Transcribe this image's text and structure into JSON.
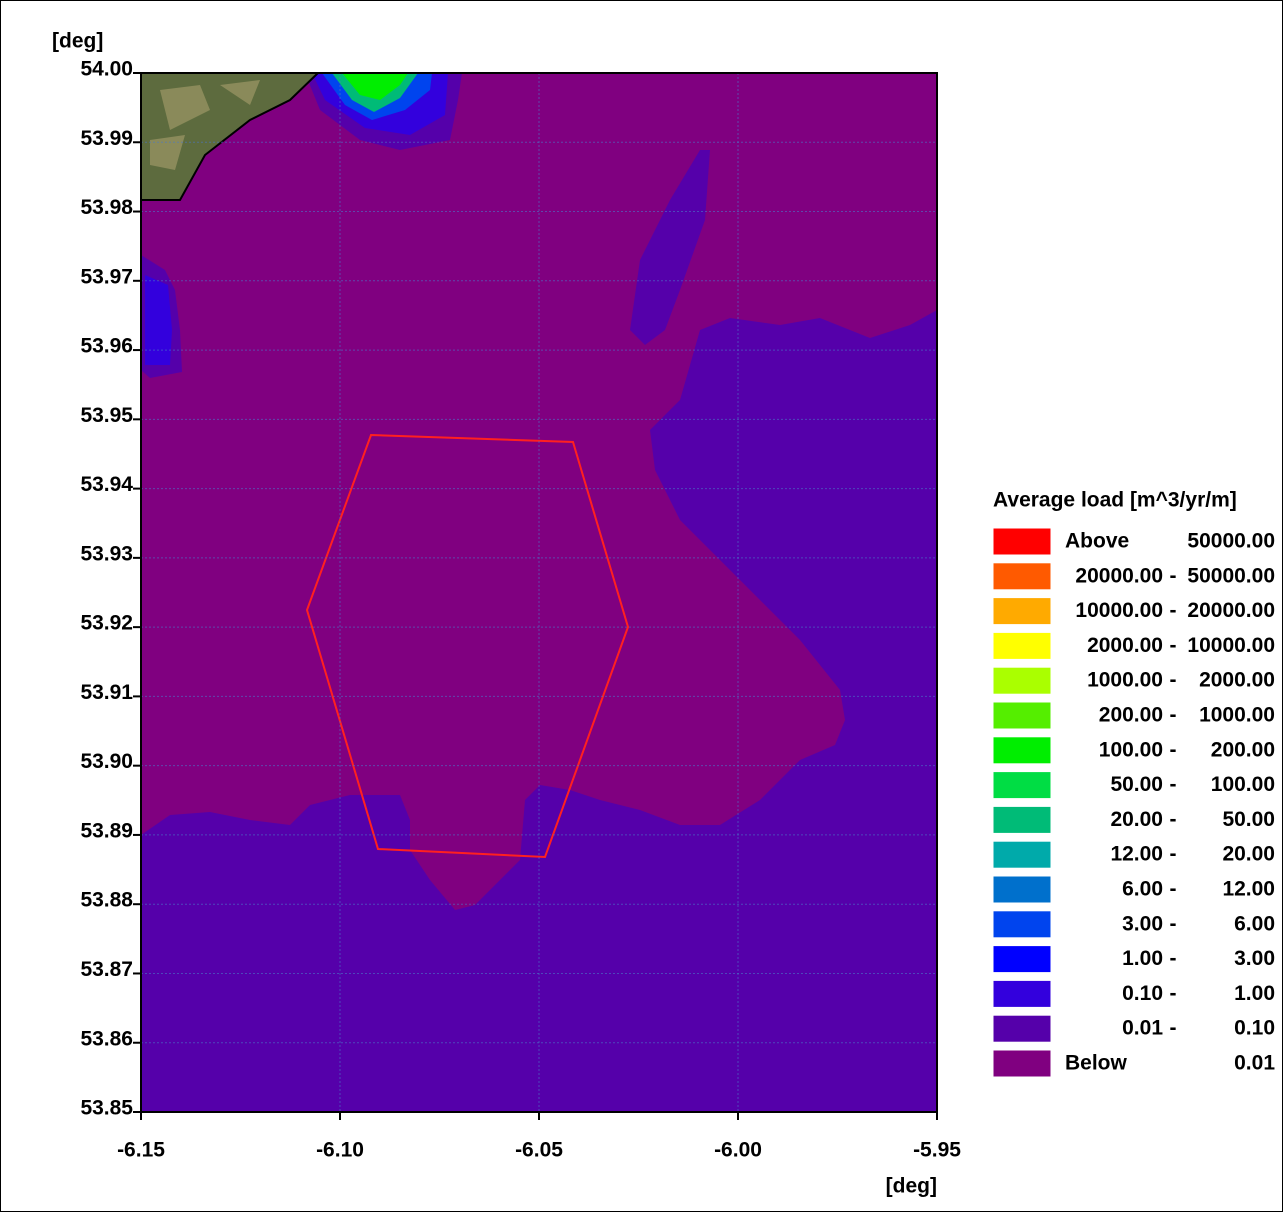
{
  "chart_data": {
    "type": "contour",
    "xlabel": "[deg]",
    "ylabel": "[deg]",
    "xlim": [
      -6.15,
      -5.95
    ],
    "xticks": [
      -6.15,
      {
        "value": -6.1,
        "label": "-6.10"
      },
      -6.05,
      {
        "value": -6,
        "label": "-6.00"
      },
      -5.95
    ],
    "ylim": [
      53.85,
      54
    ],
    "yticks": [
      53.85,
      53.86,
      53.87,
      53.88,
      53.89,
      {
        "value": 53.9,
        "label": "53.90"
      },
      53.91,
      53.92,
      53.93,
      53.94,
      53.95,
      53.96,
      53.97,
      53.98,
      53.99,
      {
        "value": 54,
        "label": "54.00"
      }
    ],
    "grid": true,
    "legend": {
      "title": "Average load [m^3/yr/m]",
      "items": [
        {
          "color": "#ff0000",
          "labels": [
            "Above",
            "50000.00"
          ]
        },
        {
          "color": "#ff5a00",
          "labels": [
            "20000.00",
            "-",
            "50000.00"
          ]
        },
        {
          "color": "#ffaa00",
          "labels": [
            "10000.00",
            "-",
            "20000.00"
          ]
        },
        {
          "color": "#ffff00",
          "labels": [
            "2000.00",
            "-",
            "10000.00"
          ]
        },
        {
          "color": "#aaff00",
          "labels": [
            "1000.00",
            "-",
            "2000.00"
          ]
        },
        {
          "color": "#55ee00",
          "labels": [
            "200.00",
            "-",
            "1000.00"
          ]
        },
        {
          "color": "#00ee00",
          "labels": [
            "100.00",
            "-",
            "200.00"
          ]
        },
        {
          "color": "#00dd44",
          "labels": [
            "50.00",
            "-",
            "100.00"
          ]
        },
        {
          "color": "#00bb77",
          "labels": [
            "20.00",
            "-",
            "50.00"
          ]
        },
        {
          "color": "#00aaaa",
          "labels": [
            "12.00",
            "-",
            "20.00"
          ]
        },
        {
          "color": "#0070cc",
          "labels": [
            "6.00",
            "-",
            "12.00"
          ]
        },
        {
          "color": "#0044ee",
          "labels": [
            "3.00",
            "-",
            "6.00"
          ]
        },
        {
          "color": "#0000ff",
          "labels": [
            "1.00",
            "-",
            "3.00"
          ]
        },
        {
          "color": "#3300dd",
          "labels": [
            "0.10",
            "-",
            "1.00"
          ]
        },
        {
          "color": "#5500aa",
          "labels": [
            "0.01",
            "-",
            "0.10"
          ]
        },
        {
          "color": "#800080",
          "labels": [
            "Below",
            "0.01"
          ]
        }
      ]
    }
  }
}
